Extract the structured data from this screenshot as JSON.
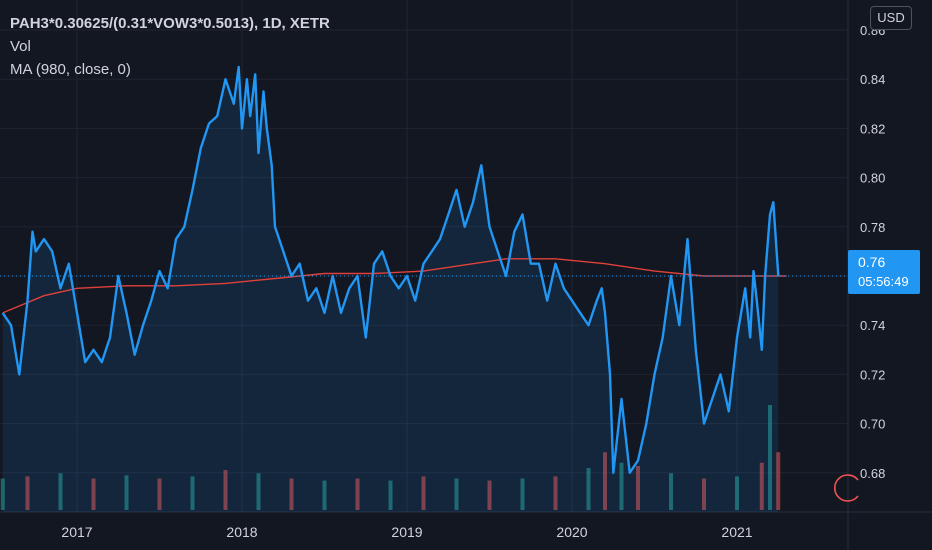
{
  "legend": {
    "title": "PAH3*0.30625/(0.31*VOW3*0.5013), 1D, XETR",
    "vol": "Vol",
    "ma": "MA (980, close, 0)"
  },
  "currency_button": "USD",
  "last_price": {
    "value": "0.76",
    "countdown": "05:56:49"
  },
  "colors": {
    "background": "#131722",
    "price_line": "#2196f3",
    "ma_line": "#e0413a",
    "volume_up": "#26a69a",
    "volume_down": "#ef5350",
    "grid": "#1f2430",
    "axis_text": "#d1d4dc",
    "price_tag": "#2196f3"
  },
  "icons": {
    "reload": "reload-icon"
  },
  "chart_data": {
    "type": "line",
    "title": "PAH3*0.30625/(0.31*VOW3*0.5013), 1D, XETR",
    "x_type": "year",
    "xlim": [
      2016.55,
      2021.3
    ],
    "ylim": [
      0.665,
      0.852
    ],
    "y_ticks": [
      "0.86",
      "0.84",
      "0.82",
      "0.80",
      "0.78",
      "0.76",
      "0.74",
      "0.72",
      "0.70",
      "0.68"
    ],
    "x_ticks": [
      "2017",
      "2018",
      "2019",
      "2020",
      "2021"
    ],
    "grid": true,
    "series": [
      {
        "name": "PAH3*0.30625/(0.31*VOW3*0.5013)",
        "kind": "price",
        "x": [
          2016.55,
          2016.6,
          2016.65,
          2016.7,
          2016.73,
          2016.75,
          2016.8,
          2016.85,
          2016.9,
          2016.95,
          2017.0,
          2017.05,
          2017.1,
          2017.15,
          2017.2,
          2017.25,
          2017.3,
          2017.35,
          2017.4,
          2017.45,
          2017.5,
          2017.55,
          2017.6,
          2017.65,
          2017.7,
          2017.75,
          2017.8,
          2017.85,
          2017.9,
          2017.95,
          2017.98,
          2018.0,
          2018.03,
          2018.05,
          2018.08,
          2018.1,
          2018.13,
          2018.15,
          2018.18,
          2018.2,
          2018.25,
          2018.3,
          2018.35,
          2018.4,
          2018.45,
          2018.5,
          2018.55,
          2018.6,
          2018.65,
          2018.7,
          2018.75,
          2018.8,
          2018.85,
          2018.9,
          2018.95,
          2019.0,
          2019.05,
          2019.1,
          2019.15,
          2019.2,
          2019.25,
          2019.3,
          2019.35,
          2019.4,
          2019.45,
          2019.5,
          2019.55,
          2019.6,
          2019.65,
          2019.7,
          2019.75,
          2019.8,
          2019.85,
          2019.9,
          2019.95,
          2020.0,
          2020.05,
          2020.1,
          2020.15,
          2020.18,
          2020.2,
          2020.23,
          2020.25,
          2020.3,
          2020.35,
          2020.4,
          2020.45,
          2020.5,
          2020.55,
          2020.6,
          2020.65,
          2020.7,
          2020.75,
          2020.8,
          2020.85,
          2020.9,
          2020.95,
          2021.0,
          2021.05,
          2021.08,
          2021.1,
          2021.12,
          2021.15,
          2021.17,
          2021.2,
          2021.22,
          2021.25
        ],
        "y": [
          0.745,
          0.74,
          0.72,
          0.75,
          0.778,
          0.77,
          0.775,
          0.77,
          0.755,
          0.765,
          0.745,
          0.725,
          0.73,
          0.725,
          0.735,
          0.76,
          0.745,
          0.728,
          0.74,
          0.75,
          0.762,
          0.755,
          0.775,
          0.78,
          0.795,
          0.812,
          0.822,
          0.825,
          0.84,
          0.83,
          0.845,
          0.82,
          0.84,
          0.825,
          0.842,
          0.81,
          0.835,
          0.82,
          0.805,
          0.78,
          0.77,
          0.76,
          0.765,
          0.75,
          0.755,
          0.745,
          0.76,
          0.745,
          0.755,
          0.76,
          0.735,
          0.765,
          0.77,
          0.76,
          0.755,
          0.76,
          0.75,
          0.765,
          0.77,
          0.775,
          0.785,
          0.795,
          0.78,
          0.79,
          0.805,
          0.78,
          0.77,
          0.76,
          0.778,
          0.785,
          0.765,
          0.765,
          0.75,
          0.765,
          0.755,
          0.75,
          0.745,
          0.74,
          0.75,
          0.755,
          0.745,
          0.72,
          0.68,
          0.71,
          0.68,
          0.685,
          0.7,
          0.72,
          0.735,
          0.76,
          0.74,
          0.775,
          0.73,
          0.7,
          0.71,
          0.72,
          0.705,
          0.735,
          0.755,
          0.735,
          0.762,
          0.75,
          0.73,
          0.76,
          0.785,
          0.79,
          0.76
        ]
      },
      {
        "name": "MA (980, close, 0)",
        "kind": "ma",
        "x": [
          2016.55,
          2016.8,
          2017.0,
          2017.3,
          2017.6,
          2017.9,
          2018.2,
          2018.5,
          2018.8,
          2019.1,
          2019.4,
          2019.6,
          2019.9,
          2020.2,
          2020.5,
          2020.8,
          2021.0,
          2021.3
        ],
        "y": [
          0.745,
          0.752,
          0.755,
          0.756,
          0.756,
          0.757,
          0.759,
          0.761,
          0.761,
          0.762,
          0.765,
          0.767,
          0.767,
          0.765,
          0.762,
          0.76,
          0.76,
          0.76
        ]
      }
    ],
    "volume": {
      "name": "Vol",
      "x": [
        2016.55,
        2016.7,
        2016.9,
        2017.1,
        2017.3,
        2017.5,
        2017.7,
        2017.9,
        2018.1,
        2018.3,
        2018.5,
        2018.7,
        2018.9,
        2019.1,
        2019.3,
        2019.5,
        2019.7,
        2019.9,
        2020.1,
        2020.2,
        2020.3,
        2020.4,
        2020.6,
        2020.8,
        2021.0,
        2021.15,
        2021.2,
        2021.25
      ],
      "values": [
        0.3,
        0.32,
        0.35,
        0.3,
        0.33,
        0.3,
        0.32,
        0.38,
        0.35,
        0.3,
        0.28,
        0.3,
        0.28,
        0.32,
        0.3,
        0.28,
        0.3,
        0.32,
        0.4,
        0.55,
        0.45,
        0.42,
        0.35,
        0.3,
        0.32,
        0.45,
        1.0,
        0.55
      ]
    }
  }
}
